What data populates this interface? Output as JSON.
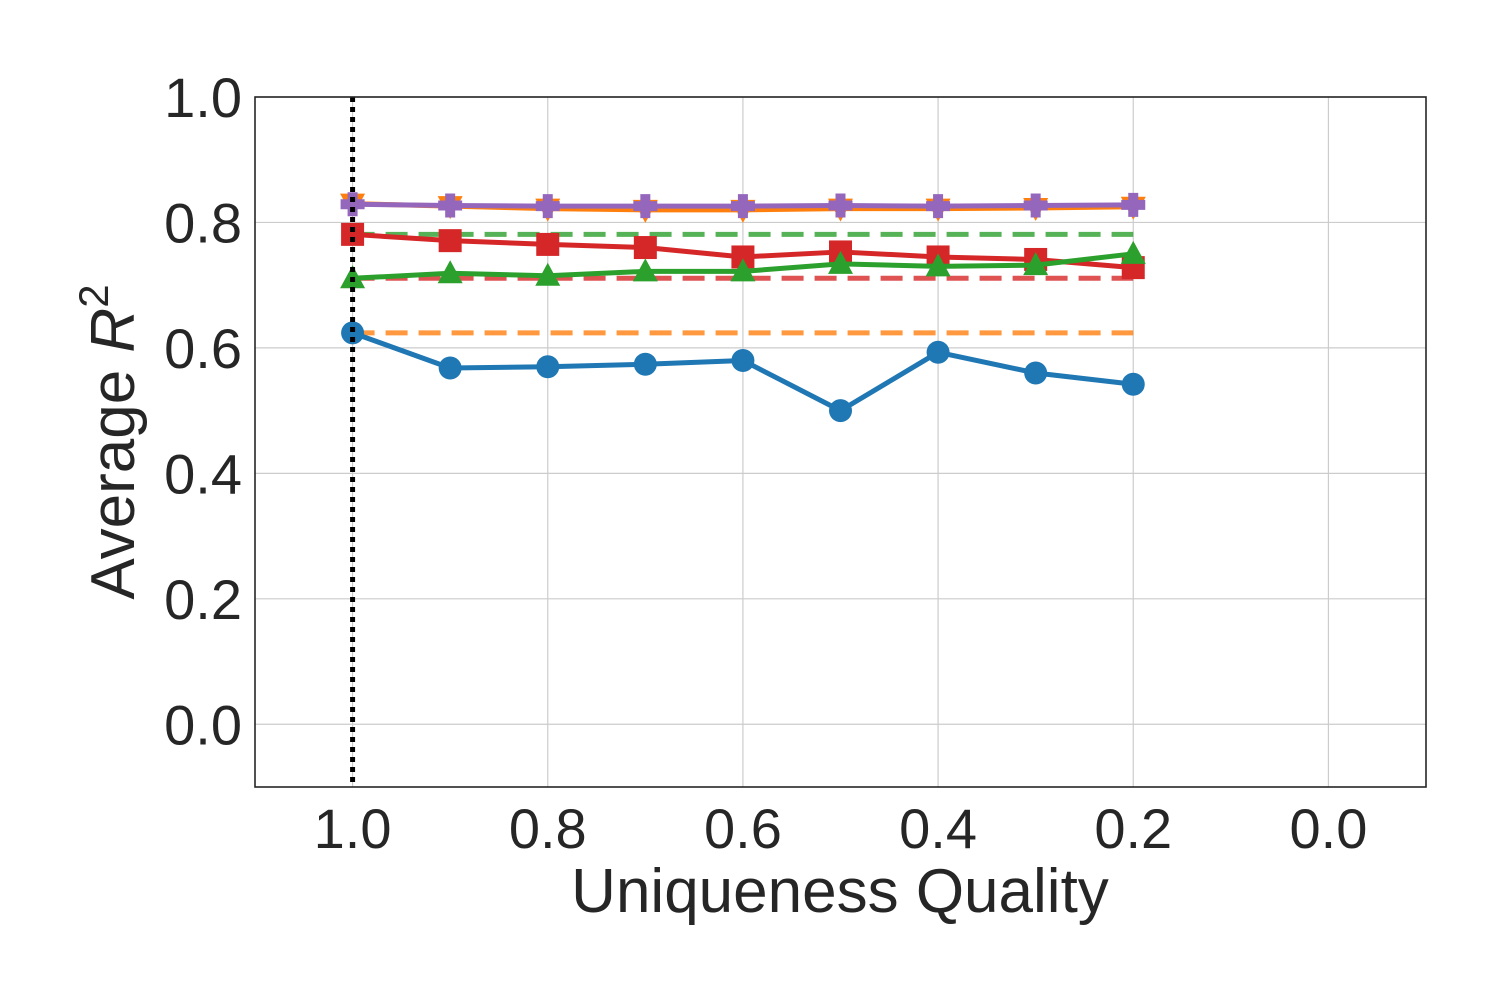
{
  "chart_data": {
    "type": "line",
    "xlabel": "Uniqueness Quality",
    "ylabel_text": "Average ",
    "ylabel_symbol": "R",
    "ylabel_superscript": "2",
    "xlim": [
      1.1,
      -0.1
    ],
    "ylim": [
      -0.1,
      1.0
    ],
    "x_ticks": [
      1.0,
      0.8,
      0.6,
      0.4,
      0.2,
      0.0
    ],
    "x_tick_labels": [
      "1.0",
      "0.8",
      "0.6",
      "0.4",
      "0.2",
      "0.0"
    ],
    "y_ticks": [
      0.0,
      0.2,
      0.4,
      0.6,
      0.8,
      1.0
    ],
    "y_tick_labels": [
      "0.0",
      "0.2",
      "0.4",
      "0.6",
      "0.8",
      "1.0"
    ],
    "grid": true,
    "x": [
      1.0,
      0.9,
      0.8,
      0.7,
      0.6,
      0.5,
      0.4,
      0.3,
      0.2
    ],
    "series": [
      {
        "color": "#ff7f0e",
        "marker": "triangle-down",
        "values": [
          0.83,
          0.826,
          0.822,
          0.82,
          0.82,
          0.822,
          0.822,
          0.823,
          0.825
        ]
      },
      {
        "color": "#9467bd",
        "marker": "plus",
        "values": [
          0.829,
          0.827,
          0.826,
          0.826,
          0.826,
          0.827,
          0.826,
          0.827,
          0.828
        ]
      },
      {
        "color": "#d62728",
        "marker": "square",
        "values": [
          0.781,
          0.771,
          0.765,
          0.76,
          0.745,
          0.753,
          0.745,
          0.741,
          0.728
        ]
      },
      {
        "color": "#2ca02c",
        "marker": "triangle-up",
        "values": [
          0.711,
          0.719,
          0.715,
          0.722,
          0.722,
          0.734,
          0.73,
          0.732,
          0.75
        ]
      },
      {
        "color": "#1f77b4",
        "marker": "circle",
        "values": [
          0.624,
          0.568,
          0.57,
          0.574,
          0.58,
          0.5,
          0.593,
          0.56,
          0.542
        ]
      }
    ],
    "reference_lines": [
      {
        "color": "#2ca02c",
        "style": "dashed",
        "y": 0.781,
        "x_range": [
          1.0,
          0.2
        ]
      },
      {
        "color": "#d62728",
        "style": "dashed",
        "y": 0.711,
        "x_range": [
          1.0,
          0.2
        ]
      },
      {
        "color": "#ff7f0e",
        "style": "dashed",
        "y": 0.624,
        "x_range": [
          1.0,
          0.2
        ]
      }
    ],
    "vertical_line": {
      "x": 1.0,
      "color": "#000000",
      "style": "dotted"
    }
  }
}
